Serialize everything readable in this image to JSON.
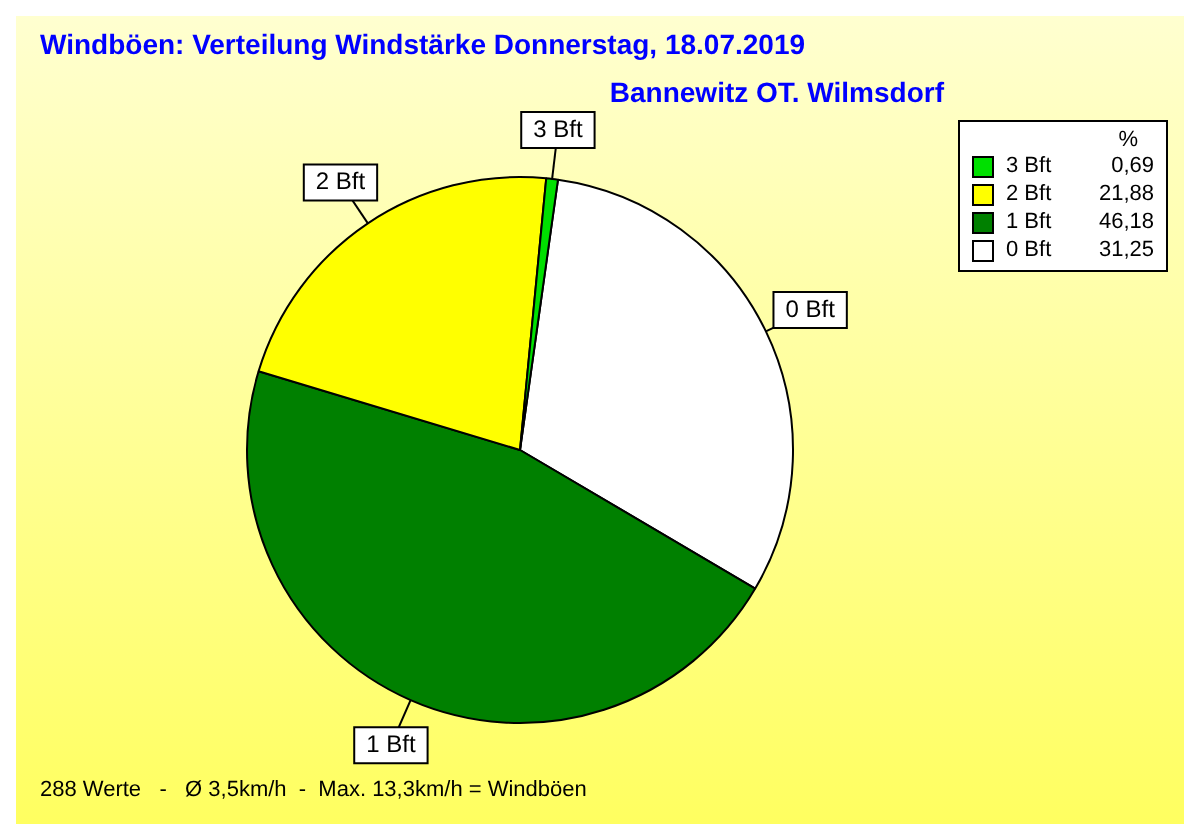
{
  "chart_data": {
    "type": "pie",
    "title": "Windböen: Verteilung Windstärke  Donnerstag, 18.07.2019",
    "subtitle": "Bannewitz OT. Wilmsdorf",
    "categories": [
      "3 Bft",
      "2 Bft",
      "1 Bft",
      "0 Bft"
    ],
    "values": [
      0.69,
      21.88,
      46.18,
      31.25
    ],
    "value_labels": [
      "0,69",
      "21,88",
      "46,18",
      "31,25"
    ],
    "colors": [
      "#00e000",
      "#ffff00",
      "#008000",
      "#ffffff"
    ],
    "legend_title": "%",
    "legend": "top right",
    "annotations": [
      "288 Werte   -   Ø 3,5km/h  -  Max. 13,3km/h = Windböen"
    ]
  }
}
